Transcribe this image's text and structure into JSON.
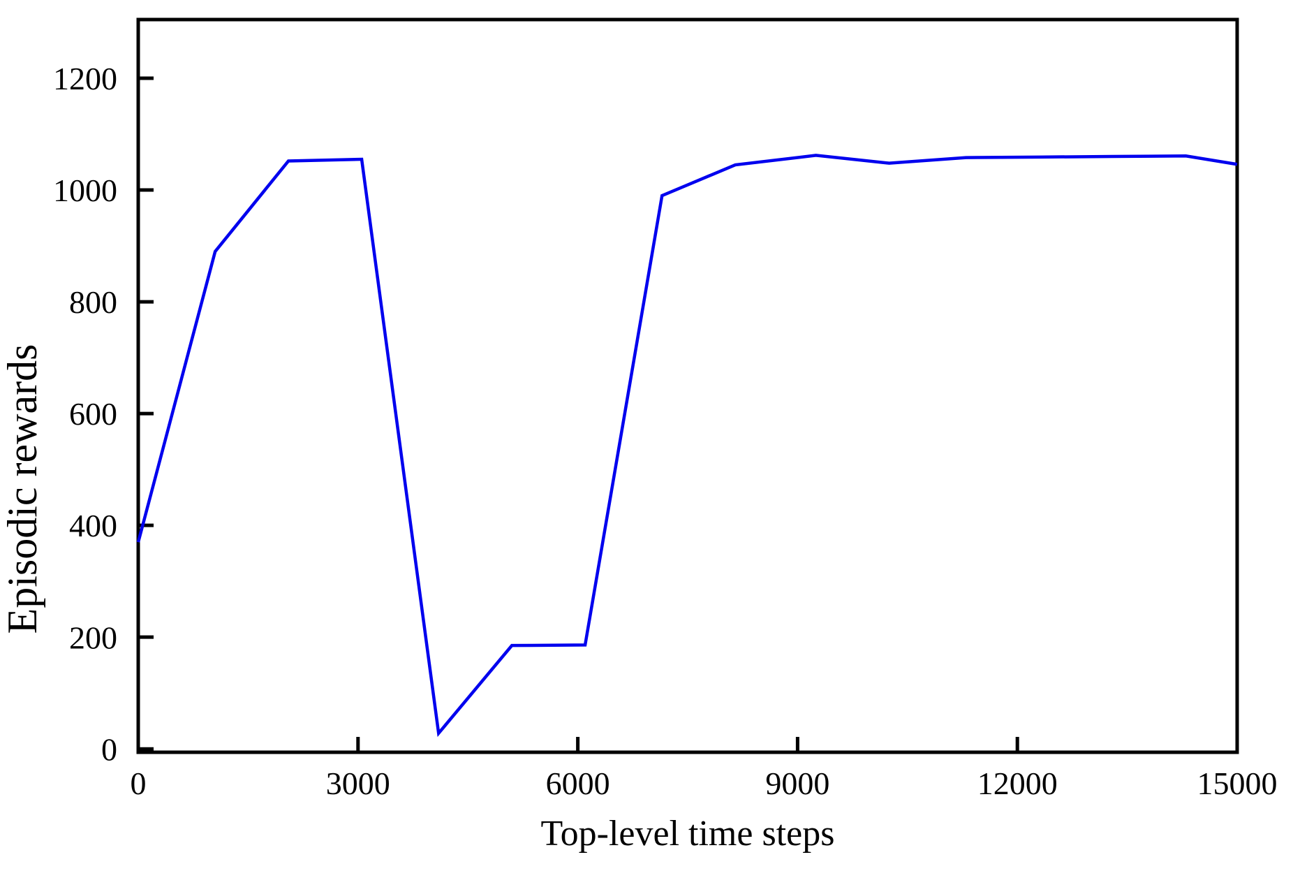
{
  "chart_data": {
    "type": "line",
    "xlabel": "Top-level time steps",
    "ylabel": "Episodic rewards",
    "xlim": [
      0,
      15000
    ],
    "ylim": [
      -6,
      1305
    ],
    "x_ticks": [
      0,
      3000,
      6000,
      9000,
      12000,
      15000
    ],
    "y_ticks": [
      0,
      200,
      400,
      600,
      800,
      1000,
      1200
    ],
    "grid": false,
    "legend": "none",
    "tick_direction": "in",
    "frame": "full-box",
    "colors": {
      "line": "#0000EE",
      "axis": "#000000",
      "background": "#FFFFFF"
    },
    "series": [
      {
        "name": "Episodic rewards",
        "x": [
          0,
          1050,
          2050,
          3050,
          4100,
          5100,
          6100,
          7150,
          8150,
          9250,
          10250,
          11300,
          12300,
          13300,
          14300,
          15000
        ],
        "y": [
          370,
          890,
          1052,
          1055,
          28,
          185,
          186,
          990,
          1045,
          1062,
          1048,
          1058,
          1059,
          1060,
          1061,
          1046
        ]
      }
    ]
  }
}
